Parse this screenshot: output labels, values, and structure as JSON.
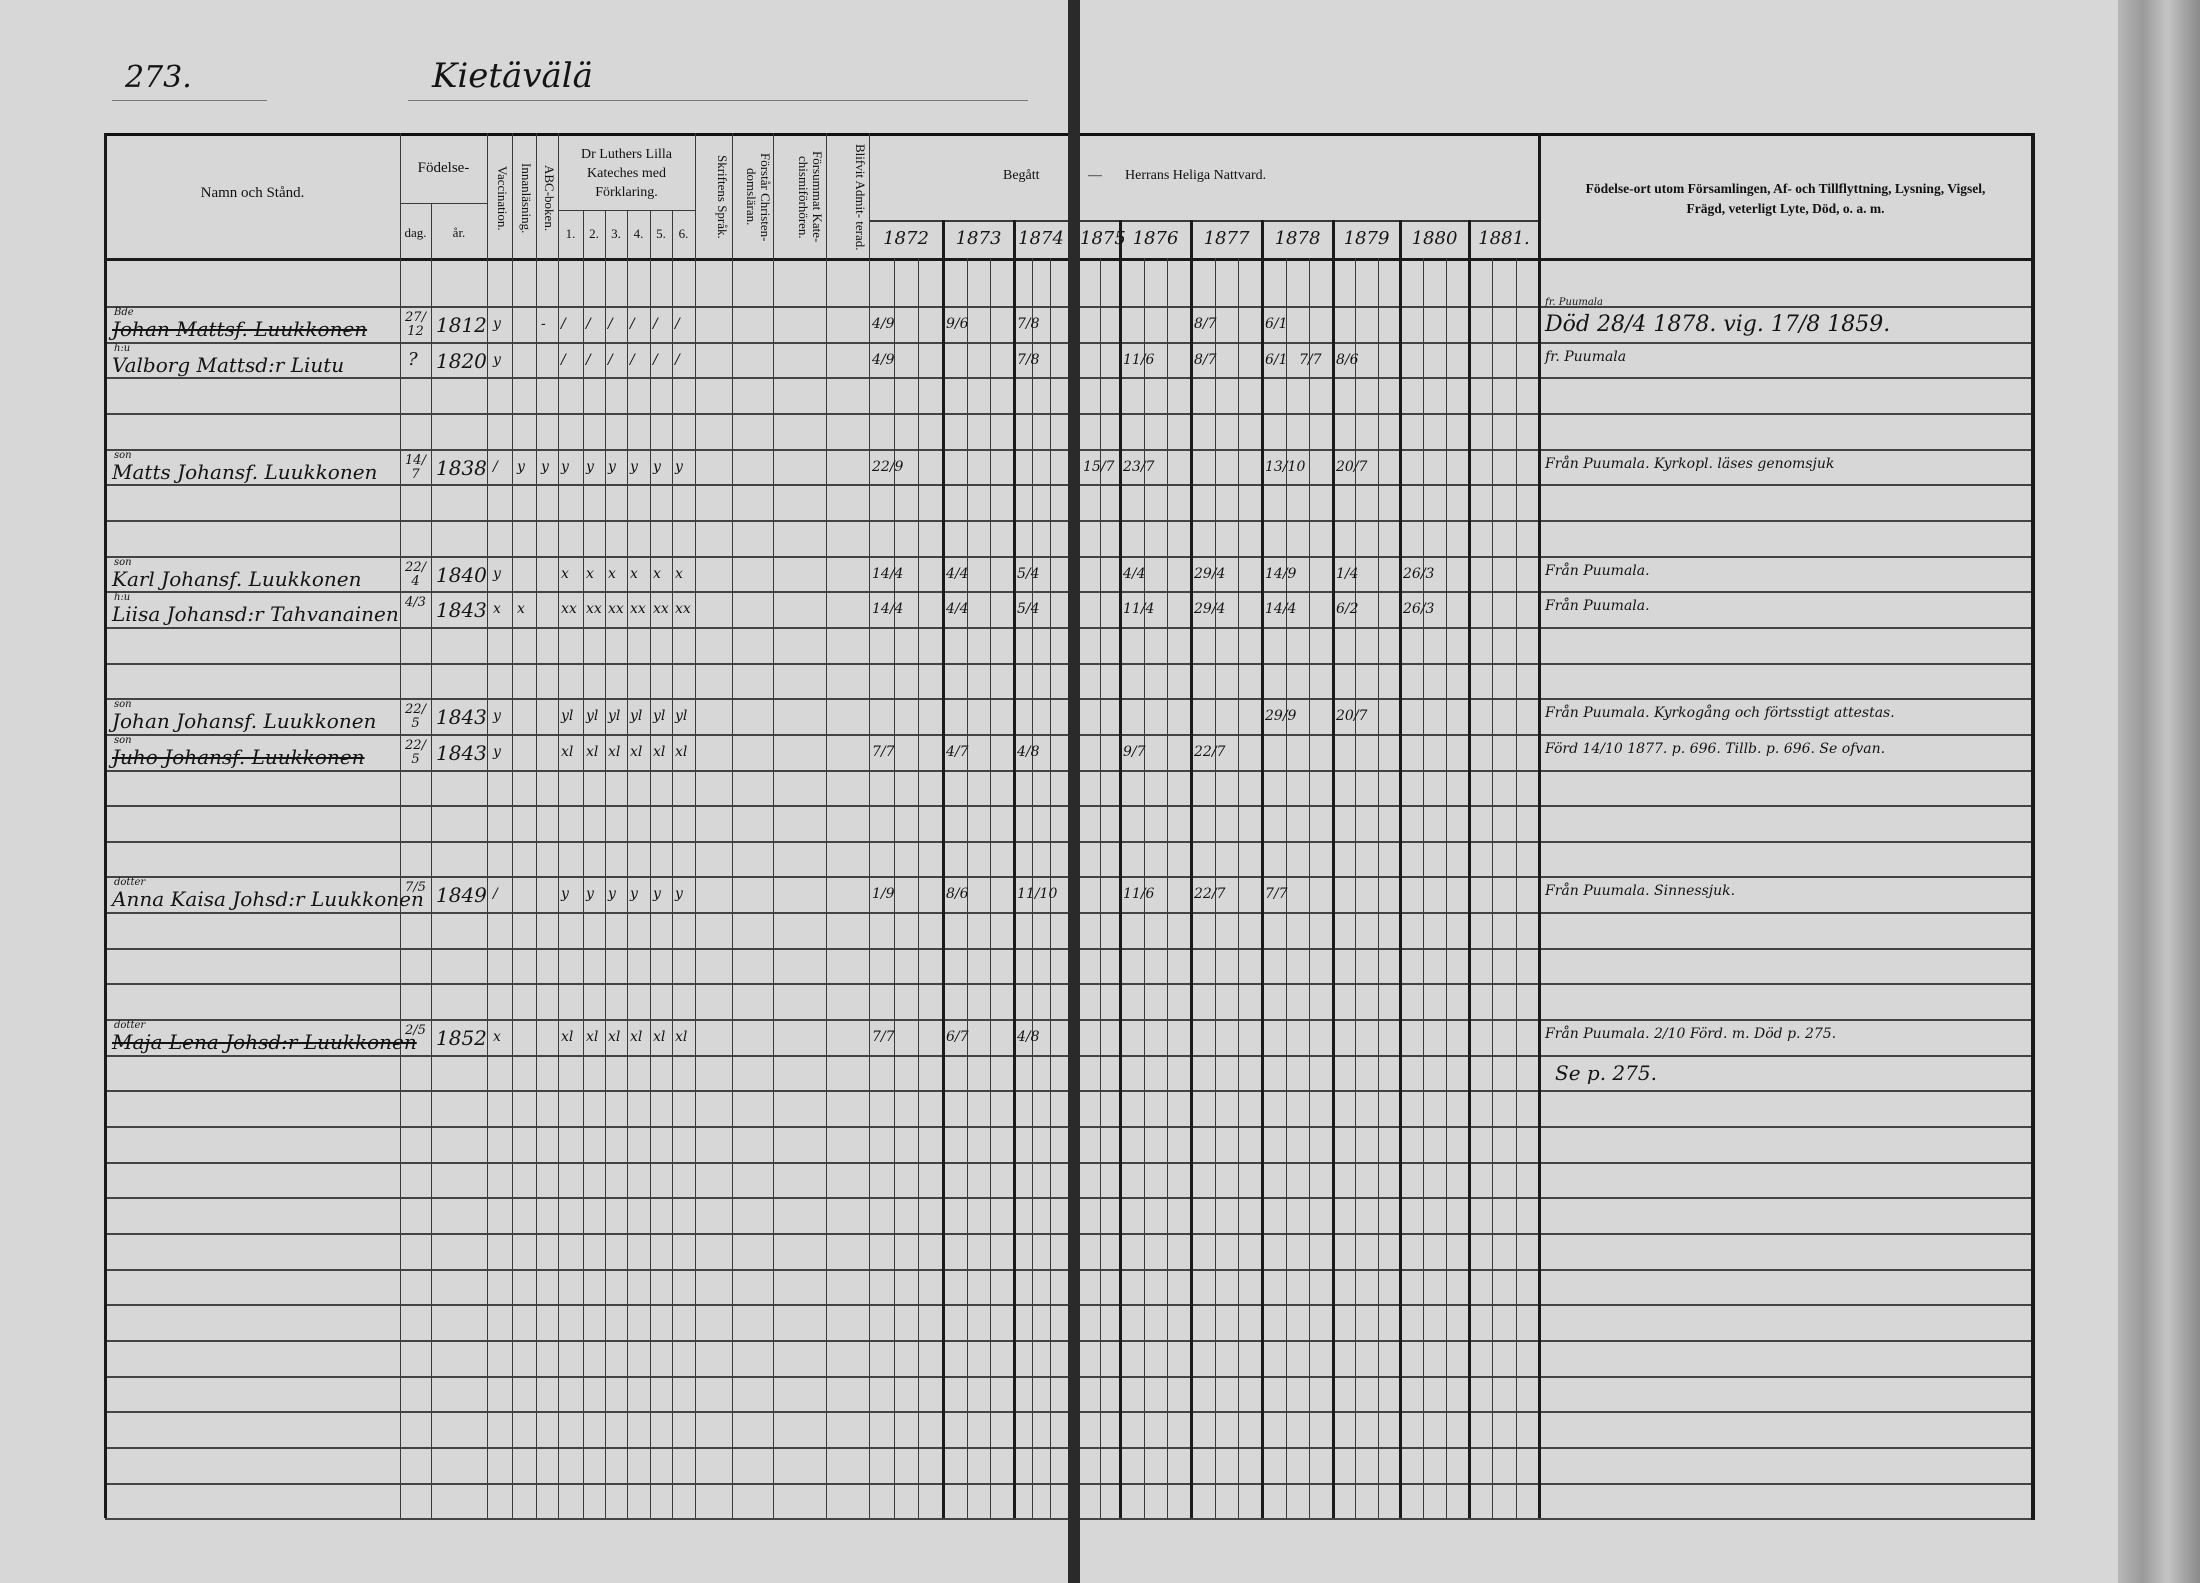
{
  "page": {
    "number": "273.",
    "title": "Kietävälä"
  },
  "header": {
    "name": "Namn och Stånd.",
    "fodelse": "Födelse-",
    "dag": "dag.",
    "ar": "år.",
    "vaccination": "Vaccination.",
    "innanlasning": "Innanläsning.",
    "abc": "ABC-boken.",
    "katekes_l1": "Dr Luthers Lilla",
    "katekes_l2": "Kateches med",
    "katekes_l3": "Förklaring.",
    "katekes_parts": [
      "1.",
      "2.",
      "3.",
      "4.",
      "5.",
      "6."
    ],
    "skriftens": "Skriftens Språk.",
    "forstar": "Förstår Christen- domsläran.",
    "forsummat": "Försummat Kate- chismiförhören.",
    "blifvit": "Blifvit Admit- terad.",
    "begatt": "Begått",
    "dash": "—",
    "nattvard": "Herrans Heliga Nattvard.",
    "years": [
      "1872",
      "1873",
      "1874",
      "1875",
      "1876",
      "1877",
      "1878",
      "1879",
      "1880",
      "1881."
    ],
    "notes_l1": "Födelse-ort utom Församlingen, Af- och Tillflyttning, Lysning, Vigsel,",
    "notes_l2": "Frägd, veterligt Lyte, Död, o. a. m."
  },
  "entries": [
    {
      "relation": "Bde",
      "name": "Johan Mattsf. Luukkonen",
      "struck": true,
      "dag": "27/12",
      "ar": "1812",
      "vaccination": "y",
      "innanlasning": "",
      "abc": "-",
      "katekes": [
        "/",
        "/",
        "/",
        "/",
        "/",
        "/"
      ],
      "communion": {
        "1872": "4/9",
        "1873": "9/6",
        "1874": "7/8",
        "1877": "8/7",
        "1878": "6/1"
      },
      "note_pre": "fr. Puumala",
      "note": "Död 28/4 1878. vig. 17/8 1859."
    },
    {
      "relation": "h:u",
      "name": "Valborg Mattsd:r Liutu",
      "struck": false,
      "dag": "?",
      "ar": "1820",
      "vaccination": "y",
      "innanlasning": "",
      "abc": "",
      "katekes": [
        "/",
        "/",
        "/",
        "/",
        "/",
        "/"
      ],
      "communion": {
        "1872": "4/9",
        "1874": "7/8",
        "1876": "11/6",
        "1877": "8/7",
        "1878": "6/1",
        "1878b": "7/7",
        "1879": "8/6"
      },
      "note_pre": "",
      "note": "fr. Puumala"
    },
    {
      "relation": "son",
      "name": "Matts Johansf. Luukkonen",
      "struck": false,
      "dag": "14/7",
      "ar": "1838",
      "vaccination": "/",
      "innanlasning": "y",
      "abc": "y",
      "katekes": [
        "y",
        "y",
        "y",
        "y",
        "y",
        "y"
      ],
      "communion": {
        "1872": "22/9",
        "1875": "15/7",
        "1876": "23/7",
        "1878": "13/10",
        "1879": "20/7"
      },
      "note_pre": "",
      "note": "Från Puumala. Kyrkopl. läses genomsjuk"
    },
    {
      "relation": "son",
      "name": "Karl Johansf. Luukkonen",
      "struck": false,
      "dag": "22/4",
      "ar": "1840",
      "vaccination": "y",
      "innanlasning": "",
      "abc": "",
      "katekes": [
        "x",
        "x",
        "x",
        "x",
        "x",
        "x"
      ],
      "communion": {
        "1872": "14/4",
        "1873": "4/4",
        "1874": "5/4",
        "1876": "4/4",
        "1877": "29/4",
        "1878": "14/9",
        "1879": "1/4",
        "1880": "26/3"
      },
      "note_pre": "",
      "note": "Från Puumala."
    },
    {
      "relation": "h:u",
      "name": "Liisa Johansd:r Tahvanainen",
      "struck": false,
      "dag": "4/3",
      "ar": "1843",
      "vaccination": "x",
      "innanlasning": "x",
      "abc": "",
      "katekes": [
        "xx",
        "xx",
        "xx",
        "xx",
        "xx",
        "xx"
      ],
      "communion": {
        "1872": "14/4",
        "1873": "4/4",
        "1874": "5/4",
        "1876": "11/4",
        "1877": "29/4",
        "1878": "14/4",
        "1879": "6/2",
        "1880": "26/3"
      },
      "note_pre": "",
      "note": "Från Puumala."
    },
    {
      "relation": "son",
      "name": "Johan Johansf. Luukkonen",
      "struck": false,
      "dag": "22/5",
      "ar": "1843",
      "vaccination": "y",
      "innanlasning": "",
      "abc": "",
      "katekes": [
        "yl",
        "yl",
        "yl",
        "yl",
        "yl",
        "yl"
      ],
      "communion": {
        "1878": "29/9",
        "1879": "20/7"
      },
      "note_pre": "",
      "note": "Från Puumala. Kyrkogång och förtsstigt attestas."
    },
    {
      "relation": "son",
      "name": "Juho Johansf. Luukkonen",
      "struck": true,
      "dag": "22/5",
      "ar": "1843",
      "vaccination": "y",
      "innanlasning": "",
      "abc": "",
      "katekes": [
        "xl",
        "xl",
        "xl",
        "xl",
        "xl",
        "xl"
      ],
      "communion": {
        "1872": "7/7",
        "1873": "4/7",
        "1874": "4/8",
        "1876": "9/7",
        "1877": "22/7"
      },
      "note_pre": "",
      "note": "Förd 14/10 1877. p. 696. Tillb. p. 696. Se ofvan."
    },
    {
      "relation": "dotter",
      "name": "Anna Kaisa Johsd:r Luukkonen",
      "struck": false,
      "dag": "7/5",
      "ar": "1849",
      "vaccination": "/",
      "innanlasning": "",
      "abc": "",
      "katekes": [
        "y",
        "y",
        "y",
        "y",
        "y",
        "y"
      ],
      "communion": {
        "1872": "1/9",
        "1873": "8/6",
        "1874": "11/10",
        "1876": "11/6",
        "1877": "22/7",
        "1878": "7/7"
      },
      "note_pre": "",
      "note": "Från Puumala. Sinnessjuk."
    },
    {
      "relation": "dotter",
      "name": "Maja Lena Johsd:r Luukkonen",
      "struck": true,
      "dag": "2/5",
      "ar": "1852",
      "vaccination": "x",
      "innanlasning": "",
      "abc": "",
      "katekes": [
        "xl",
        "xl",
        "xl",
        "xl",
        "xl",
        "xl"
      ],
      "communion": {
        "1872": "7/7",
        "1873": "6/7",
        "1874": "4/8"
      },
      "note_pre": "",
      "note": "Från Puumala. 2/10 Förd. m. Död p. 275.",
      "note_next": "Se p. 275."
    }
  ]
}
